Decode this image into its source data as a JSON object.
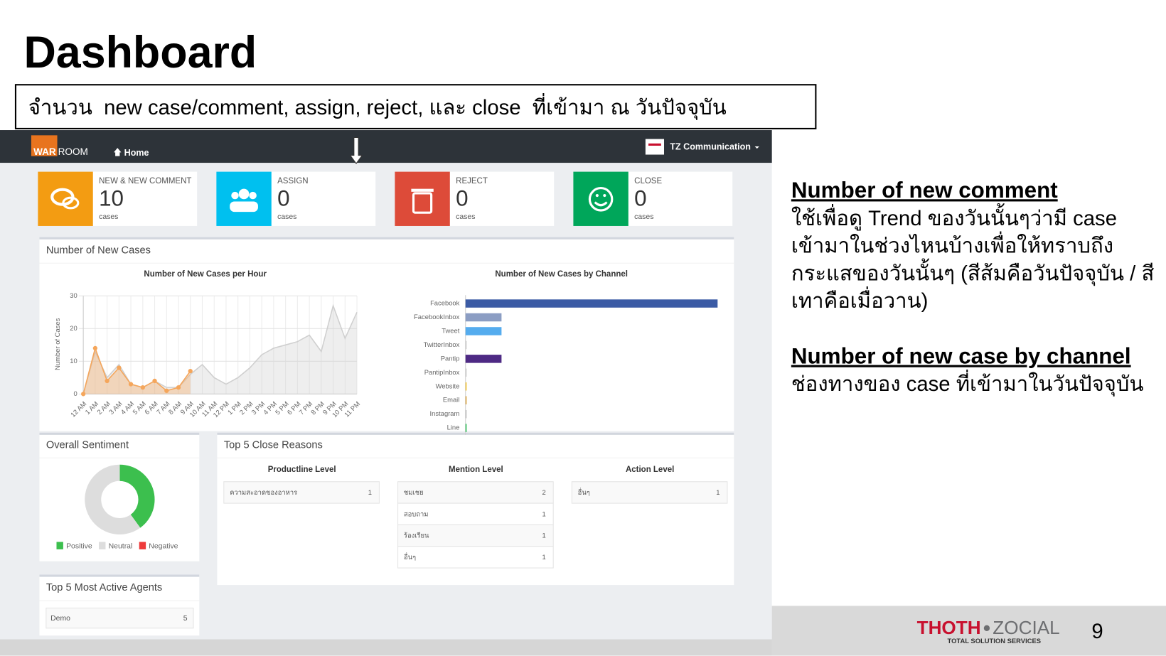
{
  "slide": {
    "title": "Dashboard",
    "caption": "จำนวน  new case/comment, assign, reject, และ close  ที่เข้ามา ณ วันปัจจุบัน",
    "notes": [
      {
        "heading": "Number of new comment",
        "text": "ใช้เพื่อดู Trend ของวันนั้นๆว่ามี case เข้ามาในช่วงไหนบ้างเพื่อให้ทราบถึงกระแสของวันนั้นๆ (สีส้มคือวันปัจจุบัน / สีเทาคือเมื่อวาน)"
      },
      {
        "heading": "Number of new case by channel",
        "text": "ช่องทางของ case ที่เข้ามาในวันปัจจุบัน"
      }
    ],
    "brand": {
      "name_red": "THOTH",
      "name_gray": "ZOCIAL",
      "tagline": "TOTAL SOLUTION SERVICES"
    },
    "page_number": 9
  },
  "navbar": {
    "logo_war": "WAR",
    "logo_room": "ROOM",
    "home": "Home",
    "account": "TZ Communication"
  },
  "stats": [
    {
      "label": "NEW & NEW COMMENT",
      "value": 10,
      "unit": "cases",
      "color": "#f39c12"
    },
    {
      "label": "ASSIGN",
      "value": 0,
      "unit": "cases",
      "color": "#00c0ef"
    },
    {
      "label": "REJECT",
      "value": 0,
      "unit": "cases",
      "color": "#dd4b39"
    },
    {
      "label": "CLOSE",
      "value": 0,
      "unit": "cases",
      "color": "#00a65a"
    }
  ],
  "panels": {
    "new_cases": "Number of New Cases",
    "sentiment": "Overall Sentiment",
    "close_reasons": "Top 5 Close Reasons",
    "agents": "Top 5 Most Active Agents"
  },
  "chart_data": [
    {
      "type": "line",
      "title": "Number of New Cases per Hour",
      "y_label": "Number of Cases",
      "x": [
        "12 AM",
        "1 AM",
        "2 AM",
        "3 AM",
        "4 AM",
        "5 AM",
        "6 AM",
        "7 AM",
        "8 AM",
        "9 AM",
        "10 AM",
        "11 AM",
        "12 PM",
        "1 PM",
        "2 PM",
        "3 PM",
        "4 PM",
        "5 PM",
        "6 PM",
        "7 PM",
        "8 PM",
        "9 PM",
        "10 PM",
        "11 PM"
      ],
      "series": [
        {
          "color": "#f5a65b",
          "markers": true,
          "values": [
            0,
            14,
            4,
            8,
            3,
            2,
            4,
            1,
            2,
            7,
            null,
            null,
            null,
            null,
            null,
            null,
            null,
            null,
            null,
            null,
            null,
            null,
            null,
            null
          ]
        },
        {
          "color": "#cfcfcf",
          "markers": false,
          "values": [
            0,
            13,
            5,
            9,
            3,
            2,
            4,
            2,
            2,
            6,
            9,
            5,
            3,
            5,
            8,
            12,
            14,
            15,
            16,
            18,
            13,
            27,
            17,
            25
          ]
        }
      ],
      "ylim": [
        0,
        30
      ],
      "yticks": [
        0,
        10,
        20,
        30
      ],
      "grid": true
    },
    {
      "type": "bar",
      "orientation": "horizontal",
      "title": "Number of New Cases by Channel",
      "categories": [
        "Facebook",
        "FacebookInbox",
        "Tweet",
        "TwitterInbox",
        "Pantip",
        "PantipInbox",
        "Website",
        "Email",
        "Instagram",
        "Line"
      ],
      "values": [
        7,
        1,
        1,
        0,
        1,
        0,
        0,
        0,
        0,
        0
      ],
      "colors": [
        "#3b5ba5",
        "#8b9dc3",
        "#55acee",
        "#cccccc",
        "#4e2a84",
        "#cccccc",
        "#f2c12e",
        "#d9a441",
        "#c0c0c0",
        "#2ebd59"
      ],
      "xlim": [
        0,
        7
      ]
    },
    {
      "type": "pie",
      "donut": true,
      "categories": [
        "Positive",
        "Neutral",
        "Negative"
      ],
      "values": [
        4,
        6,
        0
      ],
      "colors": [
        "#3cbf4e",
        "#dddddd",
        "#ee3b3b"
      ]
    }
  ],
  "close_reasons": [
    {
      "heading": "Productline Level",
      "rows": [
        [
          "ความสะอาดของอาหาร",
          1
        ]
      ]
    },
    {
      "heading": "Mention Level",
      "rows": [
        [
          "ชมเชย",
          2
        ],
        [
          "สอบถาม",
          1
        ],
        [
          "ร้องเรียน",
          1
        ],
        [
          "อื่นๆ",
          1
        ]
      ]
    },
    {
      "heading": "Action Level",
      "rows": [
        [
          "อื่นๆ",
          1
        ]
      ]
    }
  ],
  "agents": [
    [
      "Demo",
      5
    ]
  ]
}
